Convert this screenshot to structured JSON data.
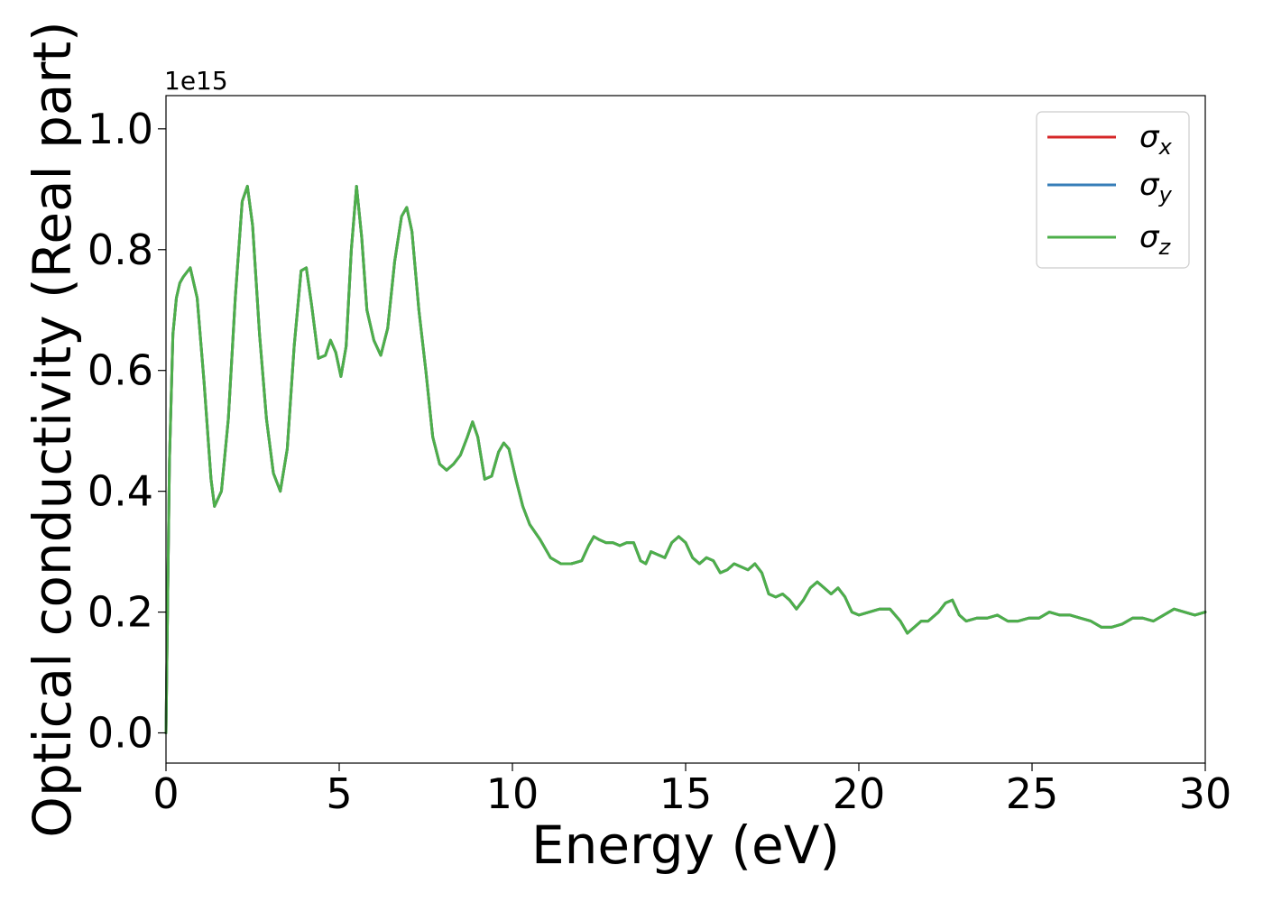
{
  "chart_data": {
    "type": "line",
    "xlabel": "Energy (eV)",
    "ylabel": "Optical conductivity (Real part)",
    "y_offset_label": "1e15",
    "xlim": [
      0,
      30
    ],
    "ylim": [
      -0.05,
      1.055
    ],
    "xticks": [
      0,
      5,
      10,
      15,
      20,
      25,
      30
    ],
    "xtick_labels": [
      "0",
      "5",
      "10",
      "15",
      "20",
      "25",
      "30"
    ],
    "yticks": [
      0.0,
      0.2,
      0.4,
      0.6,
      0.8,
      1.0
    ],
    "ytick_labels": [
      "0.0",
      "0.2",
      "0.4",
      "0.6",
      "0.8",
      "1.0"
    ],
    "grid": false,
    "legend_position": "top-right",
    "x": [
      0.0,
      0.1,
      0.2,
      0.3,
      0.4,
      0.5,
      0.7,
      0.9,
      1.1,
      1.3,
      1.4,
      1.6,
      1.8,
      2.0,
      2.2,
      2.35,
      2.5,
      2.7,
      2.9,
      3.1,
      3.3,
      3.5,
      3.7,
      3.9,
      4.05,
      4.2,
      4.4,
      4.6,
      4.75,
      4.9,
      5.05,
      5.2,
      5.35,
      5.5,
      5.65,
      5.8,
      6.0,
      6.2,
      6.4,
      6.6,
      6.8,
      6.95,
      7.1,
      7.3,
      7.5,
      7.7,
      7.9,
      8.1,
      8.3,
      8.5,
      8.7,
      8.85,
      9.0,
      9.2,
      9.4,
      9.6,
      9.75,
      9.9,
      10.1,
      10.3,
      10.5,
      10.8,
      11.1,
      11.4,
      11.7,
      12.0,
      12.2,
      12.35,
      12.5,
      12.7,
      12.9,
      13.1,
      13.3,
      13.5,
      13.7,
      13.85,
      14.0,
      14.2,
      14.4,
      14.6,
      14.8,
      15.0,
      15.2,
      15.4,
      15.6,
      15.8,
      16.0,
      16.2,
      16.4,
      16.6,
      16.8,
      17.0,
      17.2,
      17.4,
      17.6,
      17.8,
      18.0,
      18.2,
      18.4,
      18.6,
      18.8,
      19.0,
      19.2,
      19.4,
      19.6,
      19.8,
      20.0,
      20.3,
      20.6,
      20.9,
      21.2,
      21.4,
      21.6,
      21.8,
      22.0,
      22.3,
      22.5,
      22.7,
      22.9,
      23.1,
      23.4,
      23.7,
      24.0,
      24.3,
      24.6,
      24.9,
      25.2,
      25.5,
      25.8,
      26.1,
      26.4,
      26.7,
      27.0,
      27.3,
      27.6,
      27.9,
      28.2,
      28.5,
      28.8,
      29.1,
      29.4,
      29.7,
      30.0
    ],
    "series": [
      {
        "name": "σx",
        "symbol": "σ",
        "subscript": "x",
        "color": "#d62728",
        "values": [
          0.0,
          0.45,
          0.66,
          0.72,
          0.745,
          0.755,
          0.77,
          0.72,
          0.58,
          0.42,
          0.375,
          0.4,
          0.52,
          0.72,
          0.88,
          0.905,
          0.84,
          0.66,
          0.52,
          0.43,
          0.4,
          0.47,
          0.64,
          0.765,
          0.77,
          0.71,
          0.62,
          0.625,
          0.65,
          0.63,
          0.59,
          0.64,
          0.8,
          0.905,
          0.82,
          0.7,
          0.65,
          0.625,
          0.67,
          0.78,
          0.855,
          0.87,
          0.83,
          0.7,
          0.6,
          0.49,
          0.445,
          0.435,
          0.445,
          0.46,
          0.49,
          0.515,
          0.49,
          0.42,
          0.425,
          0.465,
          0.48,
          0.47,
          0.42,
          0.375,
          0.345,
          0.32,
          0.29,
          0.28,
          0.28,
          0.285,
          0.31,
          0.325,
          0.32,
          0.315,
          0.315,
          0.31,
          0.315,
          0.315,
          0.285,
          0.28,
          0.3,
          0.295,
          0.29,
          0.315,
          0.325,
          0.315,
          0.29,
          0.28,
          0.29,
          0.285,
          0.265,
          0.27,
          0.28,
          0.275,
          0.27,
          0.28,
          0.265,
          0.23,
          0.225,
          0.23,
          0.22,
          0.205,
          0.22,
          0.24,
          0.25,
          0.24,
          0.23,
          0.24,
          0.225,
          0.2,
          0.195,
          0.2,
          0.205,
          0.205,
          0.185,
          0.165,
          0.175,
          0.185,
          0.185,
          0.2,
          0.215,
          0.22,
          0.195,
          0.185,
          0.19,
          0.19,
          0.195,
          0.185,
          0.185,
          0.19,
          0.19,
          0.2,
          0.195,
          0.195,
          0.19,
          0.185,
          0.175,
          0.175,
          0.18,
          0.19,
          0.19,
          0.185,
          0.195,
          0.205,
          0.2,
          0.195,
          0.2
        ]
      },
      {
        "name": "σy",
        "symbol": "σ",
        "subscript": "y",
        "color": "#377eb8",
        "values": [
          0.0,
          0.45,
          0.66,
          0.72,
          0.745,
          0.755,
          0.77,
          0.72,
          0.58,
          0.42,
          0.375,
          0.4,
          0.52,
          0.72,
          0.88,
          0.905,
          0.84,
          0.66,
          0.52,
          0.43,
          0.4,
          0.47,
          0.64,
          0.765,
          0.77,
          0.71,
          0.62,
          0.625,
          0.65,
          0.63,
          0.59,
          0.64,
          0.8,
          0.905,
          0.82,
          0.7,
          0.65,
          0.625,
          0.67,
          0.78,
          0.855,
          0.87,
          0.83,
          0.7,
          0.6,
          0.49,
          0.445,
          0.435,
          0.445,
          0.46,
          0.49,
          0.515,
          0.49,
          0.42,
          0.425,
          0.465,
          0.48,
          0.47,
          0.42,
          0.375,
          0.345,
          0.32,
          0.29,
          0.28,
          0.28,
          0.285,
          0.31,
          0.325,
          0.32,
          0.315,
          0.315,
          0.31,
          0.315,
          0.315,
          0.285,
          0.28,
          0.3,
          0.295,
          0.29,
          0.315,
          0.325,
          0.315,
          0.29,
          0.28,
          0.29,
          0.285,
          0.265,
          0.27,
          0.28,
          0.275,
          0.27,
          0.28,
          0.265,
          0.23,
          0.225,
          0.23,
          0.22,
          0.205,
          0.22,
          0.24,
          0.25,
          0.24,
          0.23,
          0.24,
          0.225,
          0.2,
          0.195,
          0.2,
          0.205,
          0.205,
          0.185,
          0.165,
          0.175,
          0.185,
          0.185,
          0.2,
          0.215,
          0.22,
          0.195,
          0.185,
          0.19,
          0.19,
          0.195,
          0.185,
          0.185,
          0.19,
          0.19,
          0.2,
          0.195,
          0.195,
          0.19,
          0.185,
          0.175,
          0.175,
          0.18,
          0.19,
          0.19,
          0.185,
          0.195,
          0.205,
          0.2,
          0.195,
          0.2
        ]
      },
      {
        "name": "σz",
        "symbol": "σ",
        "subscript": "z",
        "color": "#4daf4a",
        "values": [
          0.0,
          0.45,
          0.66,
          0.72,
          0.745,
          0.755,
          0.77,
          0.72,
          0.58,
          0.42,
          0.375,
          0.4,
          0.52,
          0.72,
          0.88,
          0.905,
          0.84,
          0.66,
          0.52,
          0.43,
          0.4,
          0.47,
          0.64,
          0.765,
          0.77,
          0.71,
          0.62,
          0.625,
          0.65,
          0.63,
          0.59,
          0.64,
          0.8,
          0.905,
          0.82,
          0.7,
          0.65,
          0.625,
          0.67,
          0.78,
          0.855,
          0.87,
          0.83,
          0.7,
          0.6,
          0.49,
          0.445,
          0.435,
          0.445,
          0.46,
          0.49,
          0.515,
          0.49,
          0.42,
          0.425,
          0.465,
          0.48,
          0.47,
          0.42,
          0.375,
          0.345,
          0.32,
          0.29,
          0.28,
          0.28,
          0.285,
          0.31,
          0.325,
          0.32,
          0.315,
          0.315,
          0.31,
          0.315,
          0.315,
          0.285,
          0.28,
          0.3,
          0.295,
          0.29,
          0.315,
          0.325,
          0.315,
          0.29,
          0.28,
          0.29,
          0.285,
          0.265,
          0.27,
          0.28,
          0.275,
          0.27,
          0.28,
          0.265,
          0.23,
          0.225,
          0.23,
          0.22,
          0.205,
          0.22,
          0.24,
          0.25,
          0.24,
          0.23,
          0.24,
          0.225,
          0.2,
          0.195,
          0.2,
          0.205,
          0.205,
          0.185,
          0.165,
          0.175,
          0.185,
          0.185,
          0.2,
          0.215,
          0.22,
          0.195,
          0.185,
          0.19,
          0.19,
          0.195,
          0.185,
          0.185,
          0.19,
          0.19,
          0.2,
          0.195,
          0.195,
          0.19,
          0.185,
          0.175,
          0.175,
          0.18,
          0.19,
          0.19,
          0.185,
          0.195,
          0.205,
          0.2,
          0.195,
          0.2
        ]
      }
    ]
  }
}
